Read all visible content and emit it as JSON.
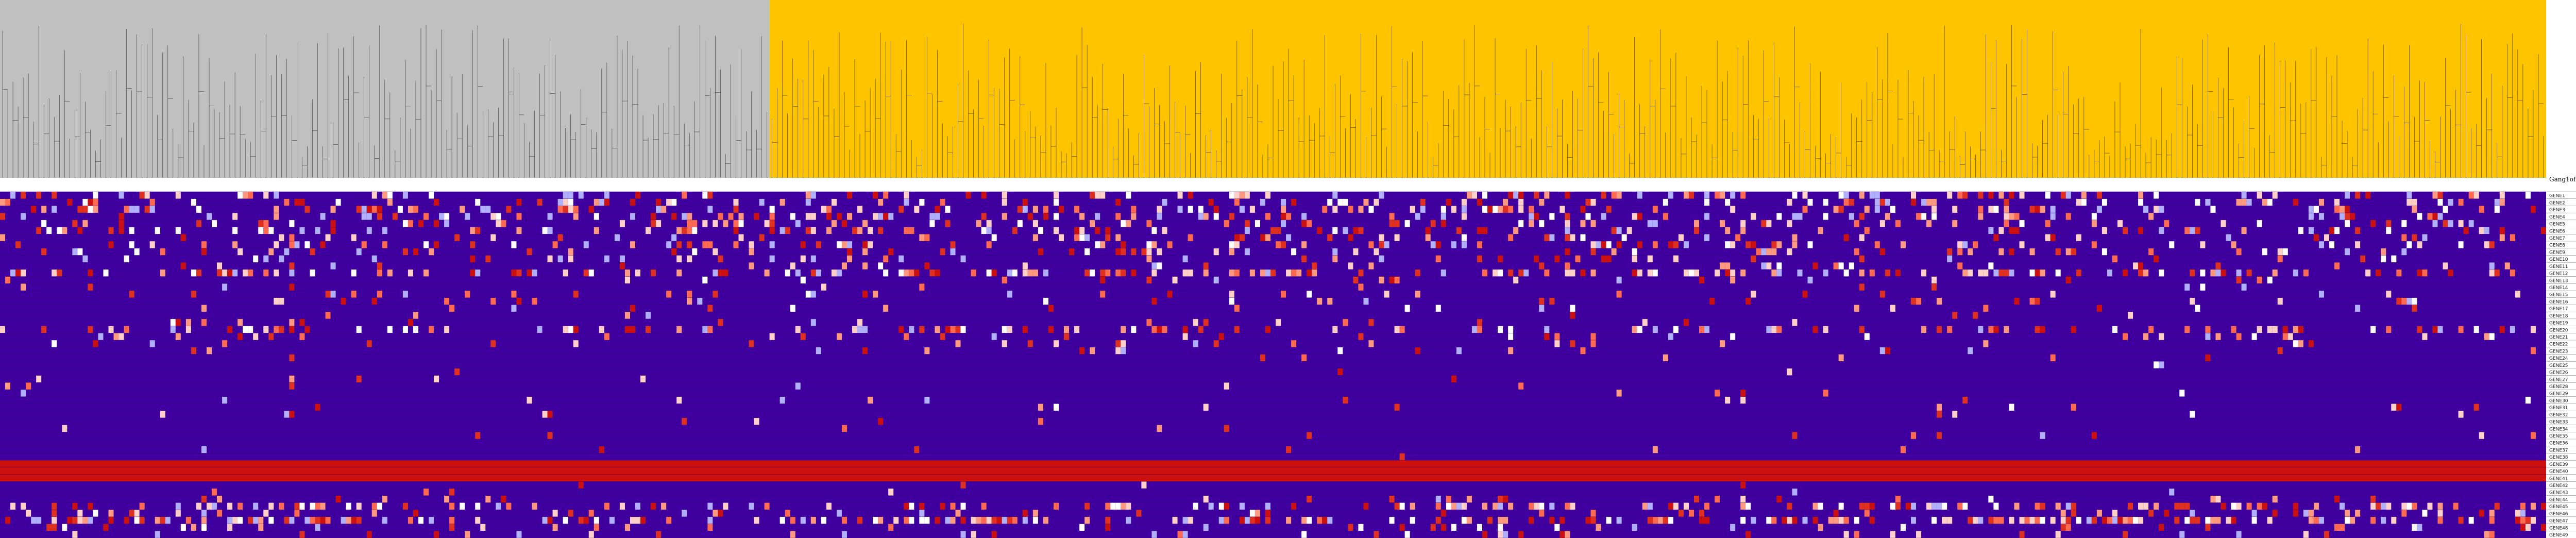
{
  "chart_data": {
    "type": "heatmap",
    "title": "",
    "row_header": "Gang1ofGenes",
    "n_columns": 493,
    "groups": [
      {
        "name": "",
        "columns": 149,
        "color": "#c0c0c0"
      },
      {
        "name": "",
        "columns": 344,
        "color": "#ffc400"
      }
    ],
    "rows": [
      {
        "label": "GENE1",
        "density": 0.22
      },
      {
        "label": "GENE2",
        "density": 0.18
      },
      {
        "label": "GENE3",
        "density": 0.24
      },
      {
        "label": "GENE4",
        "density": 0.2
      },
      {
        "label": "GENE5",
        "density": 0.16
      },
      {
        "label": "GENE6",
        "density": 0.21
      },
      {
        "label": "GENE7",
        "density": 0.14
      },
      {
        "label": "GENE8",
        "density": 0.17
      },
      {
        "label": "GENE9",
        "density": 0.12
      },
      {
        "label": "GENE10",
        "density": 0.1
      },
      {
        "label": "GENE11",
        "density": 0.08
      },
      {
        "label": "GENE12",
        "density": 0.3
      },
      {
        "label": "GENE13",
        "density": 0.04
      },
      {
        "label": "GENE14",
        "density": 0.03
      },
      {
        "label": "GENE15",
        "density": 0.06
      },
      {
        "label": "GENE16",
        "density": 0.04
      },
      {
        "label": "GENE17",
        "density": 0.03
      },
      {
        "label": "GENE18",
        "density": 0.02
      },
      {
        "label": "GENE19",
        "density": 0.04
      },
      {
        "label": "GENE20",
        "density": 0.22
      },
      {
        "label": "GENE21",
        "density": 0.12
      },
      {
        "label": "GENE22",
        "density": 0.05
      },
      {
        "label": "GENE23",
        "density": 0.03
      },
      {
        "label": "GENE24",
        "density": 0.02
      },
      {
        "label": "GENE25",
        "density": 0.01
      },
      {
        "label": "GENE26",
        "density": 0.01
      },
      {
        "label": "GENE27",
        "density": 0.01
      },
      {
        "label": "GENE28",
        "density": 0.01
      },
      {
        "label": "GENE29",
        "density": 0.01
      },
      {
        "label": "GENE30",
        "density": 0.02
      },
      {
        "label": "GENE31",
        "density": 0.01
      },
      {
        "label": "GENE32",
        "density": 0.01
      },
      {
        "label": "GENE33",
        "density": 0.01
      },
      {
        "label": "GENE34",
        "density": 0.01
      },
      {
        "label": "GENE35",
        "density": 0.01
      },
      {
        "label": "GENE36",
        "density": 0.0
      },
      {
        "label": "GENE37",
        "density": 0.01
      },
      {
        "label": "GENE38",
        "density": 0.01
      },
      {
        "label": "GENE39",
        "density": 1.0
      },
      {
        "label": "GENE40",
        "density": 1.0
      },
      {
        "label": "GENE41",
        "density": 1.0
      },
      {
        "label": "GENE42",
        "density": 0.01
      },
      {
        "label": "GENE43",
        "density": 0.02
      },
      {
        "label": "GENE44",
        "density": 0.05
      },
      {
        "label": "GENE45",
        "density": 0.28
      },
      {
        "label": "GENE46",
        "density": 0.1
      },
      {
        "label": "GENE47",
        "density": 0.35
      },
      {
        "label": "GENE48",
        "density": 0.08
      },
      {
        "label": "GENE49",
        "density": 0.12
      }
    ],
    "color_scale": {
      "low": "#4000a0",
      "mid": "#ffffff",
      "high": "#cc1010"
    },
    "legend": "none",
    "grid": true
  }
}
